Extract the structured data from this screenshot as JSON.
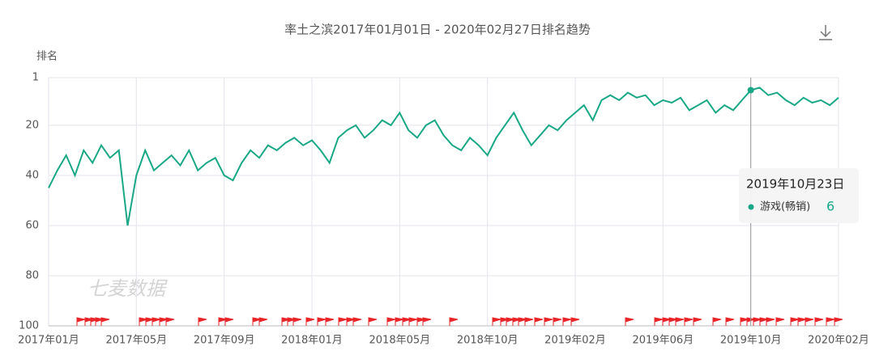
{
  "chart_data": {
    "type": "line",
    "title": "率土之滨2017年01月01日 - 2020年02月27日排名趋势",
    "y_label": "排名",
    "watermark": "七麦数据",
    "categories": [
      "2017年01月",
      null,
      null,
      null,
      null,
      null,
      null,
      null,
      null,
      null,
      "2017年05月",
      null,
      null,
      null,
      null,
      null,
      null,
      null,
      null,
      null,
      "2017年09月",
      null,
      null,
      null,
      null,
      null,
      null,
      null,
      null,
      null,
      "2018年01月",
      null,
      null,
      null,
      null,
      null,
      null,
      null,
      null,
      null,
      "2018年05月",
      null,
      null,
      null,
      null,
      null,
      null,
      null,
      null,
      null,
      "2018年10月",
      null,
      null,
      null,
      null,
      null,
      null,
      null,
      null,
      null,
      "2019年02月",
      null,
      null,
      null,
      null,
      null,
      null,
      null,
      null,
      null,
      "2019年06月",
      null,
      null,
      null,
      null,
      null,
      null,
      null,
      null,
      null,
      "2019年10月",
      null,
      null,
      null,
      null,
      null,
      null,
      null,
      null,
      null,
      "2020年02月"
    ],
    "series": [
      {
        "name": "游戏(畅销)",
        "color": "#19a886",
        "values": [
          45,
          38,
          32,
          40,
          30,
          35,
          28,
          33,
          30,
          60,
          40,
          30,
          38,
          35,
          32,
          36,
          30,
          38,
          35,
          33,
          40,
          42,
          35,
          30,
          33,
          28,
          30,
          27,
          25,
          28,
          26,
          30,
          35,
          25,
          22,
          20,
          25,
          22,
          18,
          20,
          15,
          22,
          25,
          20,
          18,
          24,
          28,
          30,
          25,
          28,
          32,
          25,
          20,
          15,
          22,
          28,
          24,
          20,
          22,
          18,
          15,
          12,
          18,
          10,
          8,
          10,
          7,
          9,
          8,
          12,
          10,
          11,
          9,
          14,
          12,
          10,
          15,
          12,
          14,
          10,
          6,
          5,
          8,
          7,
          10,
          12,
          9,
          11,
          10,
          12,
          9
        ]
      }
    ],
    "ylim": [
      1,
      100
    ],
    "yticks": [
      1,
      20,
      40,
      60,
      80,
      100
    ],
    "y_inverted": true,
    "grid": true,
    "tooltip": {
      "date": "2019年10月23日",
      "series": "游戏(畅销)",
      "value": 6
    }
  }
}
